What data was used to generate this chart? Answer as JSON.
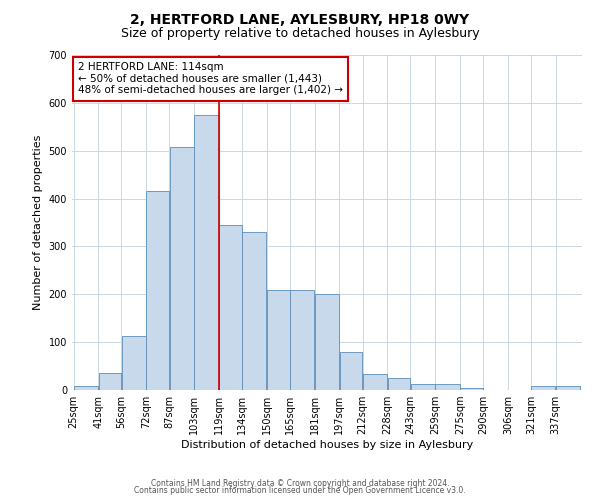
{
  "title": "2, HERTFORD LANE, AYLESBURY, HP18 0WY",
  "subtitle": "Size of property relative to detached houses in Aylesbury",
  "xlabel": "Distribution of detached houses by size in Aylesbury",
  "ylabel": "Number of detached properties",
  "bar_heights": [
    8,
    35,
    112,
    415,
    507,
    575,
    345,
    330,
    210,
    210,
    200,
    80,
    33,
    25,
    12,
    12,
    5,
    0,
    0,
    8,
    8
  ],
  "bin_edges": [
    25,
    41,
    56,
    72,
    87,
    103,
    119,
    134,
    150,
    165,
    181,
    197,
    212,
    228,
    243,
    259,
    275,
    290,
    306,
    321,
    337,
    353
  ],
  "tick_labels": [
    "25sqm",
    "41sqm",
    "56sqm",
    "72sqm",
    "87sqm",
    "103sqm",
    "119sqm",
    "134sqm",
    "150sqm",
    "165sqm",
    "181sqm",
    "197sqm",
    "212sqm",
    "228sqm",
    "243sqm",
    "259sqm",
    "275sqm",
    "290sqm",
    "306sqm",
    "321sqm",
    "337sqm"
  ],
  "vline_x": 119,
  "vline_color": "#cc0000",
  "bar_facecolor": "#c9d9ec",
  "bar_edgecolor": "#5b8db8",
  "ylim": [
    0,
    700
  ],
  "yticks": [
    0,
    100,
    200,
    300,
    400,
    500,
    600,
    700
  ],
  "annotation_title": "2 HERTFORD LANE: 114sqm",
  "annotation_line1": "← 50% of detached houses are smaller (1,443)",
  "annotation_line2": "48% of semi-detached houses are larger (1,402) →",
  "annotation_box_color": "#cc0000",
  "footer_line1": "Contains HM Land Registry data © Crown copyright and database right 2024.",
  "footer_line2": "Contains public sector information licensed under the Open Government Licence v3.0.",
  "bg_color": "#ffffff",
  "grid_color": "#c8d8e8",
  "title_fontsize": 10,
  "subtitle_fontsize": 9
}
